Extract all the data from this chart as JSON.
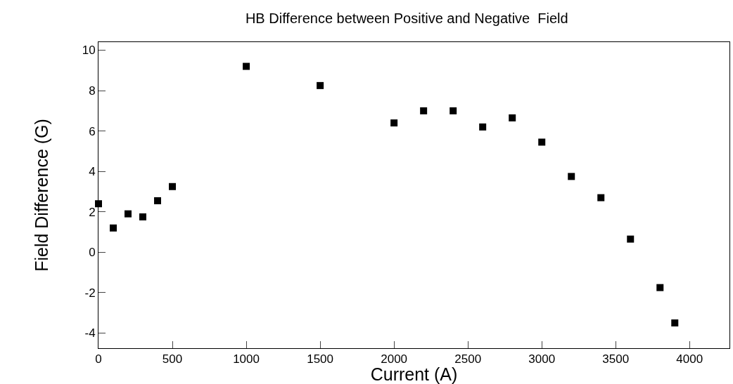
{
  "chart_data": {
    "type": "scatter",
    "title": "HB Difference between Positive and Negative  Field",
    "xlabel": "Current (A)",
    "ylabel": "Field Difference (G)",
    "x": [
      0,
      100,
      200,
      300,
      400,
      500,
      1000,
      1500,
      2000,
      2200,
      2400,
      2600,
      2800,
      3000,
      3200,
      3400,
      3600,
      3800,
      3900
    ],
    "series": [
      {
        "color": "#000000",
        "values": [
          2.4,
          1.2,
          1.9,
          1.75,
          2.55,
          3.25,
          9.2,
          8.25,
          6.4,
          7.0,
          7.0,
          6.2,
          6.65,
          5.45,
          3.75,
          2.7,
          0.65,
          -1.75,
          -3.5
        ]
      }
    ],
    "xlim": [
      0,
      4270
    ],
    "xticks": [
      0,
      500,
      1000,
      1500,
      2000,
      2500,
      3000,
      3500,
      4000
    ],
    "ylim": [
      -4.75,
      10.4
    ],
    "yticks": [
      -4,
      -2,
      0,
      2,
      4,
      6,
      8,
      10
    ],
    "grid": false,
    "marker": "square"
  }
}
